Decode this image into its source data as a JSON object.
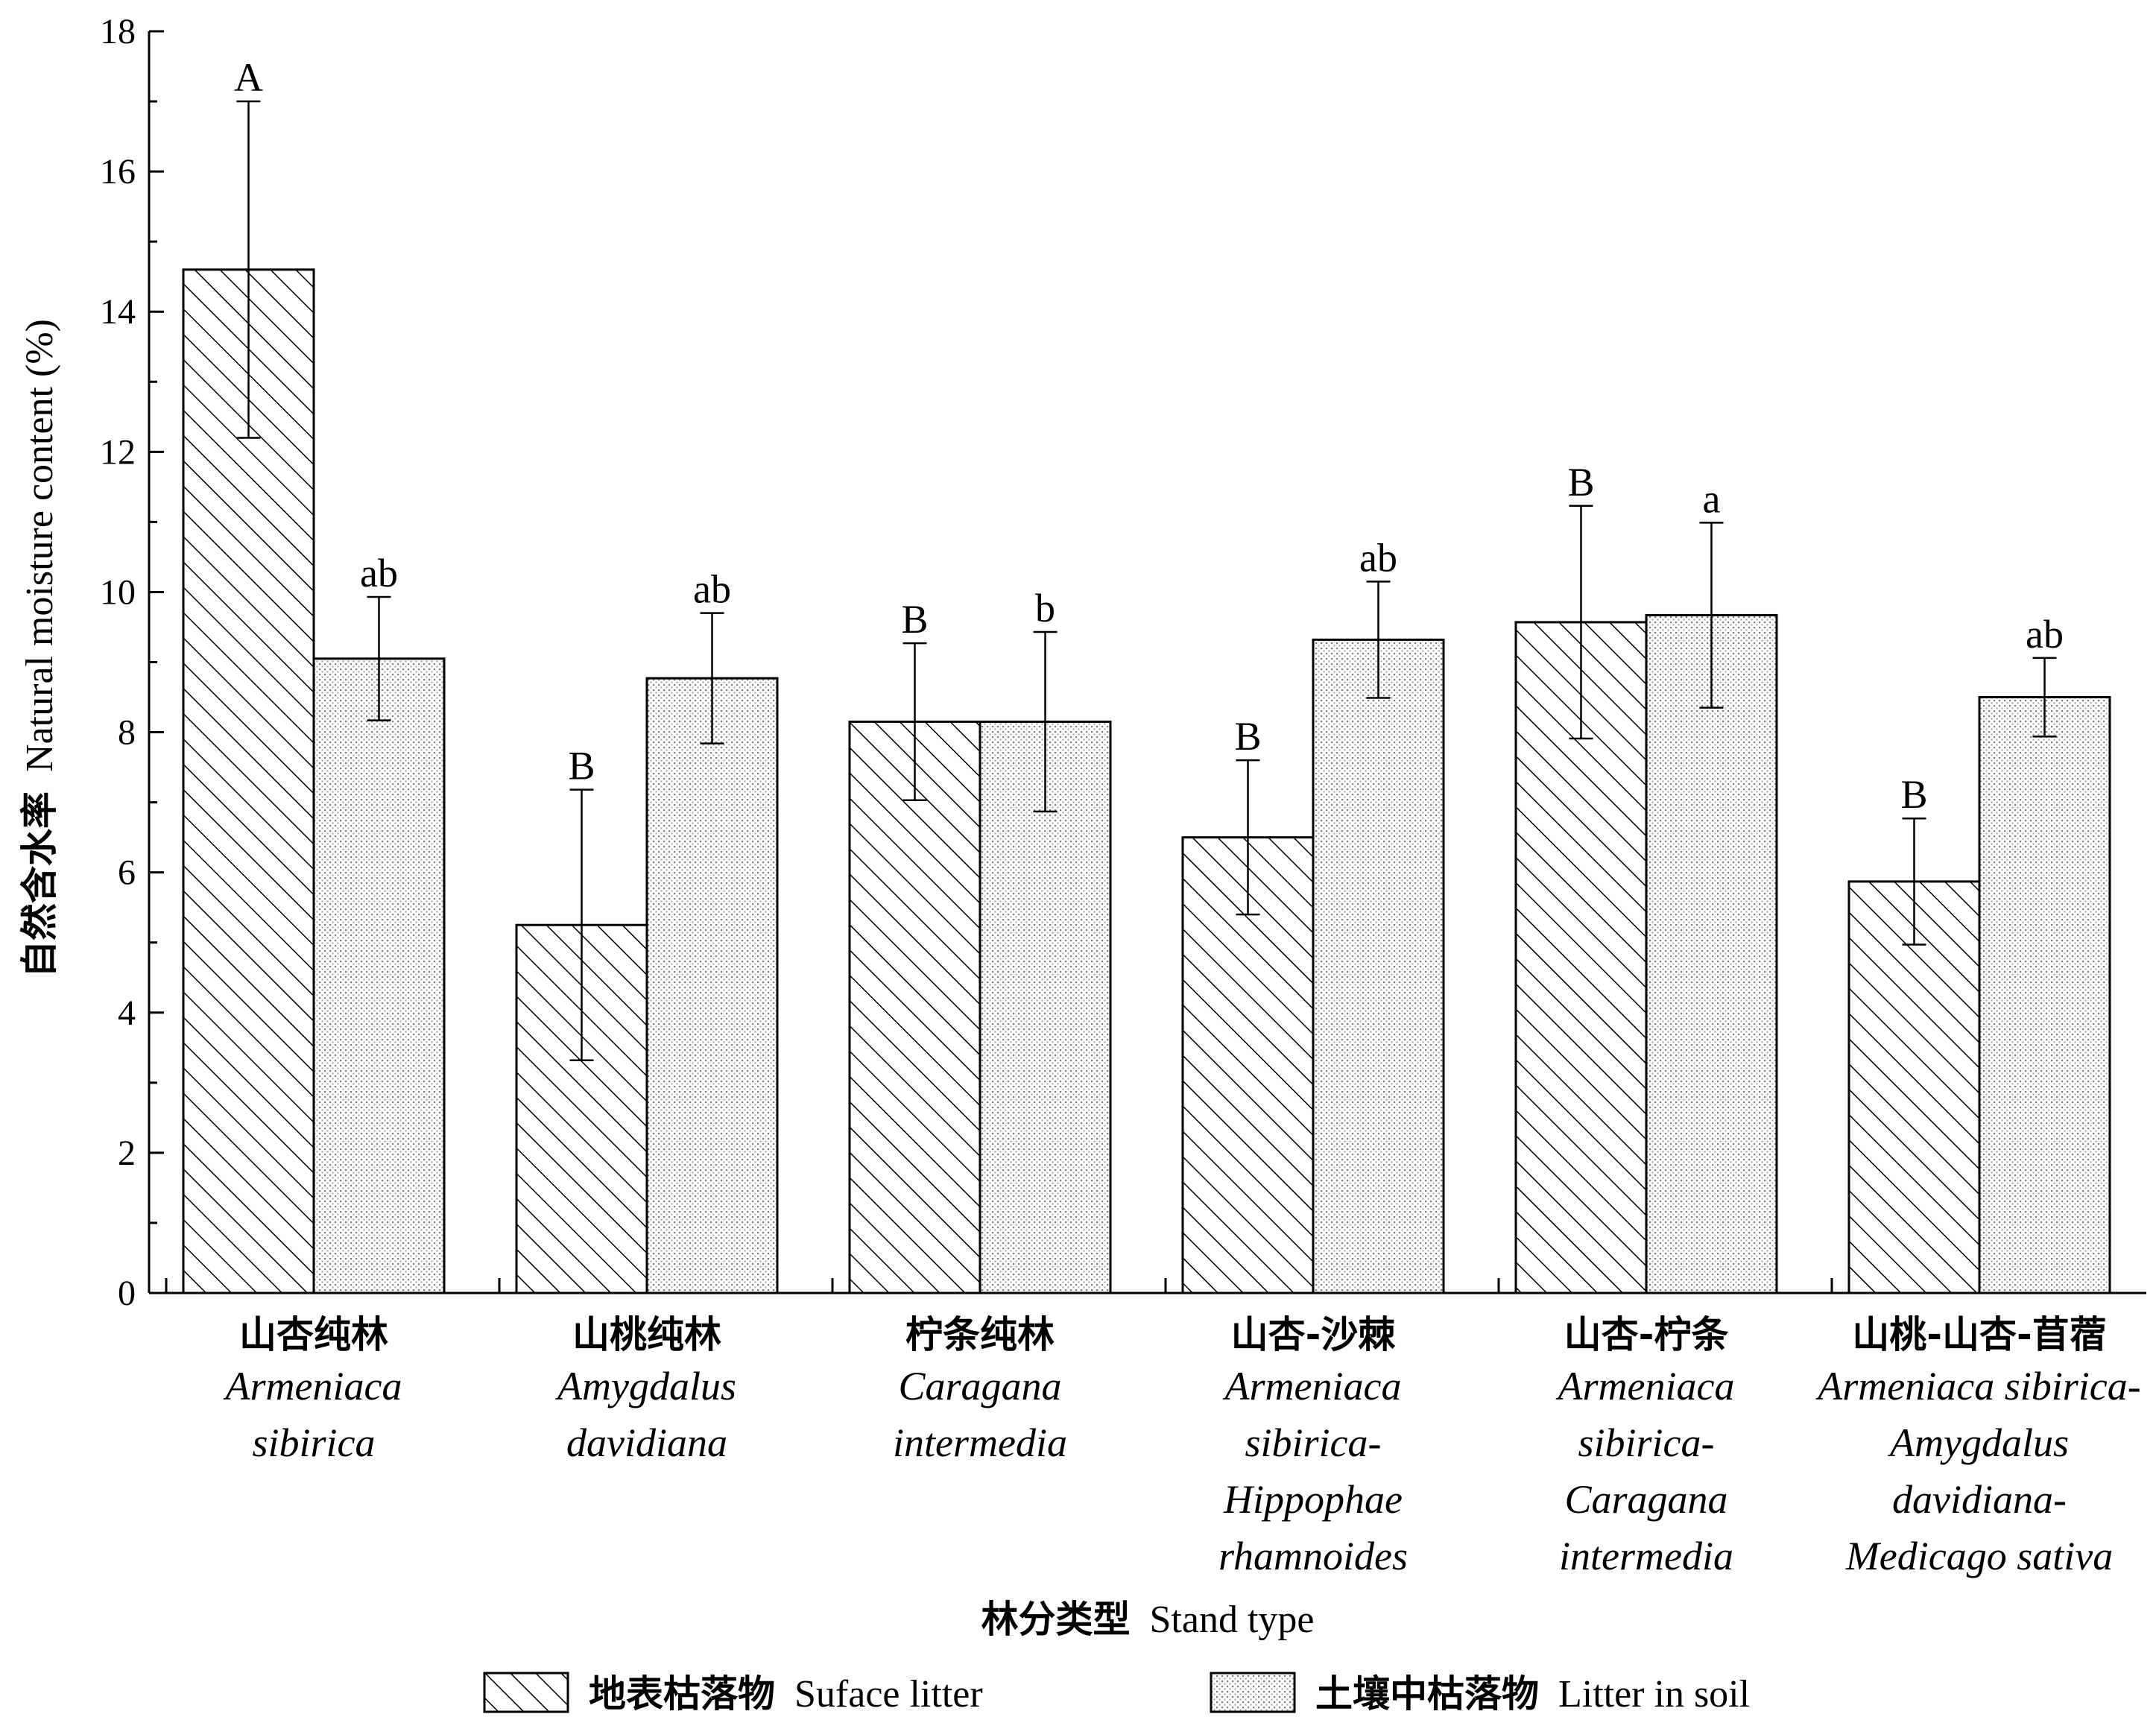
{
  "chart_data": {
    "type": "bar",
    "xlabel_cn": "林分类型",
    "xlabel_en": "Stand type",
    "ylabel_cn": "自然含水率",
    "ylabel_en": "Natural moisture content (%)",
    "ylim": [
      0,
      18
    ],
    "yticks": [
      0,
      2,
      4,
      6,
      8,
      10,
      12,
      14,
      16,
      18
    ],
    "categories": [
      {
        "cn": "山杏纯林",
        "en": [
          "Armeniaca",
          "sibirica"
        ]
      },
      {
        "cn": "山桃纯林",
        "en": [
          "Amygdalus",
          "davidiana"
        ]
      },
      {
        "cn": "柠条纯林",
        "en": [
          "Caragana",
          "intermedia"
        ]
      },
      {
        "cn": "山杏-沙棘",
        "en": [
          "Armeniaca",
          "sibirica-",
          "Hippophae",
          "rhamnoides"
        ]
      },
      {
        "cn": "山杏-柠条",
        "en": [
          "Armeniaca",
          "sibirica-",
          "Caragana",
          "intermedia"
        ]
      },
      {
        "cn": "山桃-山杏-苜蓿",
        "en": [
          "Armeniaca sibirica-",
          "Amygdalus",
          "davidiana-",
          "Medicago sativa"
        ]
      }
    ],
    "series": [
      {
        "name_cn": "地表枯落物",
        "name_en": "Suface litter",
        "pattern": "hatch",
        "values": [
          14.6,
          5.25,
          8.15,
          6.5,
          9.57,
          5.87
        ],
        "errors": [
          2.4,
          1.93,
          1.12,
          1.1,
          1.66,
          0.9
        ],
        "labels": [
          "A",
          "B",
          "B",
          "B",
          "B",
          "B"
        ]
      },
      {
        "name_cn": "土壤中枯落物",
        "name_en": "Litter in soil",
        "pattern": "dots",
        "values": [
          9.05,
          8.77,
          8.15,
          9.32,
          9.67,
          8.5
        ],
        "errors": [
          0.88,
          0.93,
          1.28,
          0.83,
          1.32,
          0.56
        ],
        "labels": [
          "ab",
          "ab",
          "b",
          "ab",
          "a",
          "ab"
        ]
      }
    ],
    "grid": false,
    "legend": "bottom-center"
  }
}
